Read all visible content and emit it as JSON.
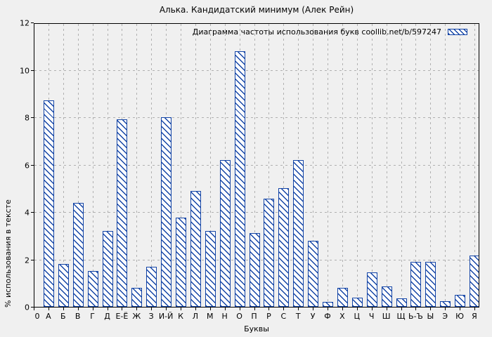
{
  "chart_data": {
    "type": "bar",
    "title": "Алька. Кандидатский минимум (Алек Рейн)",
    "legend": "Диаграмма частоты использования букв coollib.net/b/597247",
    "legend_position": "top-right",
    "xlabel": "Буквы",
    "ylabel": "% использования в тексте",
    "ylim": [
      0,
      12
    ],
    "yticks": [
      0,
      2,
      4,
      6,
      8,
      10,
      12
    ],
    "x_origin_label": "0",
    "grid": true,
    "bar_style": "diagonal-hatch",
    "categories": [
      "А",
      "Б",
      "В",
      "Г",
      "Д",
      "Е-Ё",
      "Ж",
      "З",
      "И-Й",
      "К",
      "Л",
      "М",
      "Н",
      "О",
      "П",
      "Р",
      "С",
      "Т",
      "У",
      "Ф",
      "Х",
      "Ц",
      "Ч",
      "Ш",
      "Щ",
      "Ь-Ъ",
      "Ы",
      "Э",
      "Ю",
      "Я"
    ],
    "values": [
      8.7,
      1.8,
      4.4,
      1.5,
      3.2,
      7.9,
      0.8,
      1.7,
      8.0,
      3.75,
      4.9,
      3.2,
      6.2,
      10.8,
      3.1,
      4.55,
      5.0,
      6.2,
      2.8,
      0.2,
      0.8,
      0.4,
      1.45,
      0.85,
      0.35,
      1.9,
      1.9,
      0.25,
      0.5,
      2.15
    ],
    "colors": {
      "bar_edge": "#1243a5",
      "bar_fill": "#ffffff",
      "grid": "#b0b0b0",
      "background": "#f0f0f0",
      "frame": "#000000",
      "text": "#000000"
    }
  }
}
